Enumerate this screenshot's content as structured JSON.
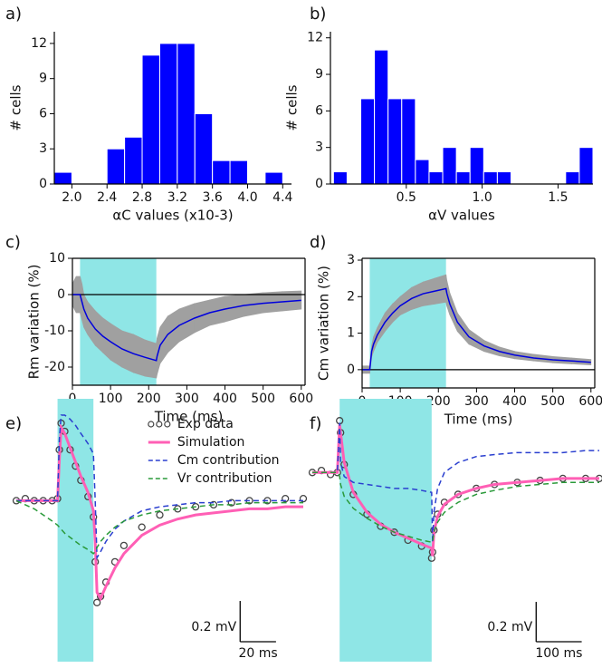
{
  "chart_data": [
    {
      "type": "histogram",
      "label": "a)",
      "xlabel": "αC values (x10-3)",
      "ylabel": "# cells",
      "color": "#0000ff",
      "bins": [
        1.8,
        2.0,
        2.2,
        2.4,
        2.6,
        2.8,
        3.0,
        3.2,
        3.4,
        3.6,
        3.8,
        4.0,
        4.2,
        4.4
      ],
      "values": [
        1,
        0,
        0,
        3,
        4,
        11,
        12,
        12,
        6,
        2,
        2,
        0,
        1
      ],
      "xlim": [
        1.8,
        4.5
      ],
      "ylim": [
        0,
        13
      ],
      "xticks": [
        {
          "value": 2,
          "label": "2.0"
        },
        2.4,
        2.8,
        3.2,
        3.6,
        {
          "value": 4,
          "label": "4.0"
        },
        4.4
      ],
      "yticks": [
        0,
        3,
        6,
        9,
        12
      ]
    },
    {
      "type": "histogram",
      "label": "b)",
      "xlabel": "αV values",
      "ylabel": "# cells",
      "color": "#0000ff",
      "bins": [
        0.02,
        0.11,
        0.2,
        0.29,
        0.38,
        0.47,
        0.56,
        0.65,
        0.74,
        0.83,
        0.92,
        1.01,
        1.1,
        1.19,
        1.28,
        1.37,
        1.46,
        1.55,
        1.64,
        1.73
      ],
      "values": [
        1,
        0,
        7,
        11,
        7,
        7,
        2,
        1,
        3,
        1,
        3,
        1,
        1,
        0,
        0,
        0,
        0,
        1,
        3
      ],
      "xlim": [
        0,
        1.73
      ],
      "ylim": [
        0,
        12.5
      ],
      "xticks": [
        0.5,
        {
          "value": 1,
          "label": "1.0"
        },
        1.5
      ],
      "yticks": [
        0,
        3,
        6,
        9,
        12
      ]
    },
    {
      "type": "line",
      "label": "c)",
      "xlabel": "Time (ms)",
      "ylabel": "Rm variation (%)",
      "xlim": [
        0,
        610
      ],
      "ylim": [
        -25,
        10
      ],
      "xticks": [
        0,
        100,
        200,
        300,
        400,
        500,
        600
      ],
      "yticks": [
        -20,
        -10,
        0,
        10
      ],
      "span": [
        20,
        220
      ],
      "span_color": "#8fe6e6",
      "hline": 0,
      "x": [
        0,
        10,
        20,
        25,
        30,
        40,
        60,
        80,
        100,
        130,
        160,
        190,
        220,
        222,
        230,
        250,
        280,
        320,
        360,
        400,
        450,
        500,
        550,
        600
      ],
      "band": {
        "color": "#a0a0a0",
        "upper": [
          3,
          5,
          5,
          3,
          0,
          -2,
          -4.5,
          -6.5,
          -8,
          -10,
          -11,
          -12.5,
          -13.5,
          -12,
          -9,
          -6,
          -4,
          -2.5,
          -1.5,
          -0.5,
          0,
          0.5,
          0.8,
          1
        ],
        "lower": [
          -3,
          -5,
          -5,
          -7,
          -9,
          -11,
          -14,
          -16,
          -18,
          -20,
          -21.5,
          -22.5,
          -23,
          -22,
          -19,
          -16,
          -13,
          -10.5,
          -8.5,
          -7.5,
          -6,
          -5,
          -4.5,
          -4
        ]
      },
      "series": [
        {
          "color": "#0000dd",
          "style": "line",
          "values": [
            0,
            0,
            0,
            -2,
            -4,
            -6.5,
            -9.5,
            -11.5,
            -13,
            -15,
            -16.3,
            -17.3,
            -18.2,
            -17,
            -14,
            -11,
            -8.5,
            -6.5,
            -5,
            -4,
            -3,
            -2.4,
            -2,
            -1.6
          ]
        }
      ]
    },
    {
      "type": "line",
      "label": "d)",
      "xlabel": "Time (ms)",
      "ylabel": "Cm variation (%)",
      "xlim": [
        0,
        610
      ],
      "ylim": [
        -0.5,
        3.05
      ],
      "xticks": [
        0,
        100,
        200,
        300,
        400,
        500,
        600
      ],
      "yticks": [
        0,
        1,
        2,
        3
      ],
      "span": [
        20,
        220
      ],
      "span_color": "#8fe6e6",
      "hline": 0,
      "x": [
        0,
        10,
        20,
        25,
        30,
        40,
        60,
        80,
        100,
        130,
        160,
        190,
        220,
        222,
        230,
        250,
        280,
        320,
        360,
        400,
        450,
        500,
        550,
        600
      ],
      "band": {
        "color": "#a0a0a0",
        "upper": [
          0.1,
          0.1,
          0.1,
          0.65,
          0.9,
          1.15,
          1.55,
          1.8,
          2.0,
          2.25,
          2.4,
          2.5,
          2.6,
          2.45,
          2.1,
          1.55,
          1.1,
          0.8,
          0.62,
          0.5,
          0.42,
          0.36,
          0.32,
          0.28
        ],
        "lower": [
          -0.1,
          -0.1,
          -0.1,
          0.35,
          0.5,
          0.75,
          1.05,
          1.3,
          1.5,
          1.65,
          1.75,
          1.8,
          1.85,
          1.75,
          1.5,
          1.05,
          0.7,
          0.5,
          0.38,
          0.3,
          0.24,
          0.19,
          0.16,
          0.13
        ]
      },
      "series": [
        {
          "color": "#0000dd",
          "style": "line",
          "values": [
            0,
            0,
            0,
            0.5,
            0.7,
            0.95,
            1.3,
            1.55,
            1.75,
            1.95,
            2.08,
            2.15,
            2.22,
            2.1,
            1.8,
            1.3,
            0.9,
            0.65,
            0.5,
            0.4,
            0.32,
            0.27,
            0.24,
            0.2
          ]
        }
      ]
    },
    {
      "type": "line",
      "label": "e)",
      "legend": "upper right",
      "xlim": [
        0,
        160
      ],
      "ylim": [
        -0.79,
        0.5
      ],
      "span": [
        23,
        43
      ],
      "span_color": "#8fe6e6",
      "scalebar": {
        "x": 20,
        "x_label": "20 ms",
        "y": 0.2,
        "y_label": "0.2 mV"
      },
      "x": [
        0,
        5,
        10,
        15,
        20,
        23,
        24,
        25,
        27,
        30,
        33,
        36,
        40,
        43,
        44,
        45,
        47,
        50,
        55,
        60,
        70,
        80,
        90,
        100,
        110,
        120,
        130,
        140,
        150,
        160
      ],
      "series": [
        {
          "name": "Exp data",
          "color": "#444444",
          "style": "markers",
          "values": [
            0,
            0.01,
            0,
            0,
            0,
            0.01,
            0.25,
            0.38,
            0.34,
            0.25,
            0.17,
            0.1,
            0.02,
            -0.08,
            -0.3,
            -0.5,
            -0.47,
            -0.4,
            -0.3,
            -0.22,
            -0.13,
            -0.07,
            -0.04,
            -0.03,
            -0.02,
            -0.01,
            0,
            0,
            0.01,
            0.01
          ]
        },
        {
          "name": "Simulation",
          "color": "#ff5fb5",
          "style": "line",
          "values": [
            0,
            0,
            0,
            0,
            0,
            0,
            0.2,
            0.36,
            0.33,
            0.26,
            0.19,
            0.12,
            0.04,
            -0.05,
            -0.2,
            -0.45,
            -0.48,
            -0.42,
            -0.33,
            -0.26,
            -0.17,
            -0.12,
            -0.09,
            -0.07,
            -0.06,
            -0.05,
            -0.04,
            -0.04,
            -0.03,
            -0.03
          ]
        },
        {
          "name": "Cm contribution",
          "color": "#2a3fcf",
          "style": "dashed",
          "values": [
            0,
            0,
            0,
            0,
            0,
            0,
            0.3,
            0.42,
            0.42,
            0.4,
            0.37,
            0.33,
            0.28,
            0.23,
            0,
            -0.28,
            -0.25,
            -0.2,
            -0.14,
            -0.1,
            -0.05,
            -0.03,
            -0.02,
            -0.01,
            -0.01,
            0,
            0,
            0,
            0,
            0
          ]
        },
        {
          "name": "Vr contribution",
          "color": "#2a9a3a",
          "style": "dashed",
          "values": [
            0,
            -0.02,
            -0.04,
            -0.07,
            -0.1,
            -0.12,
            -0.13,
            -0.14,
            -0.16,
            -0.18,
            -0.2,
            -0.22,
            -0.24,
            -0.26,
            -0.25,
            -0.23,
            -0.2,
            -0.17,
            -0.13,
            -0.1,
            -0.07,
            -0.05,
            -0.04,
            -0.03,
            -0.02,
            -0.02,
            -0.01,
            -0.01,
            -0.01,
            -0.01
          ]
        }
      ]
    },
    {
      "type": "line",
      "label": "f)",
      "xlim": [
        0,
        630
      ],
      "ylim": [
        -0.95,
        0.37
      ],
      "span": [
        60,
        262
      ],
      "span_color": "#8fe6e6",
      "scalebar": {
        "x": 100,
        "x_label": "100 ms",
        "y": 0.2,
        "y_label": "0.2 mV"
      },
      "x": [
        0,
        20,
        40,
        55,
        60,
        62,
        70,
        90,
        120,
        150,
        180,
        210,
        240,
        262,
        264,
        267,
        275,
        290,
        320,
        360,
        400,
        450,
        500,
        550,
        600,
        630
      ],
      "series": [
        {
          "name": "Exp data",
          "color": "#444444",
          "style": "markers",
          "values": [
            0,
            0.01,
            -0.01,
            0,
            0.26,
            0.2,
            0.04,
            -0.11,
            -0.21,
            -0.27,
            -0.3,
            -0.34,
            -0.37,
            -0.43,
            -0.4,
            -0.29,
            -0.21,
            -0.15,
            -0.11,
            -0.08,
            -0.06,
            -0.05,
            -0.04,
            -0.03,
            -0.03,
            -0.03
          ]
        },
        {
          "name": "Simulation",
          "color": "#ff5fb5",
          "style": "line",
          "values": [
            0,
            0,
            0,
            0,
            0.24,
            0.2,
            0.05,
            -0.1,
            -0.2,
            -0.26,
            -0.3,
            -0.33,
            -0.36,
            -0.38,
            -0.42,
            -0.3,
            -0.22,
            -0.16,
            -0.11,
            -0.08,
            -0.06,
            -0.05,
            -0.04,
            -0.03,
            -0.03,
            -0.03
          ]
        },
        {
          "name": "Cm contribution",
          "color": "#2a3fcf",
          "style": "dashed",
          "values": [
            0,
            0,
            0,
            0,
            0.25,
            0.05,
            -0.02,
            -0.05,
            -0.06,
            -0.07,
            -0.08,
            -0.08,
            -0.09,
            -0.1,
            -0.35,
            -0.2,
            -0.08,
            0,
            0.05,
            0.08,
            0.09,
            0.1,
            0.1,
            0.1,
            0.11,
            0.11
          ]
        },
        {
          "name": "Vr contribution",
          "color": "#2a9a3a",
          "style": "dashed",
          "values": [
            0,
            0,
            0,
            0,
            -0.02,
            -0.06,
            -0.12,
            -0.18,
            -0.23,
            -0.27,
            -0.3,
            -0.32,
            -0.34,
            -0.35,
            -0.35,
            -0.3,
            -0.25,
            -0.2,
            -0.15,
            -0.11,
            -0.09,
            -0.07,
            -0.06,
            -0.05,
            -0.05,
            -0.05
          ]
        }
      ]
    }
  ]
}
